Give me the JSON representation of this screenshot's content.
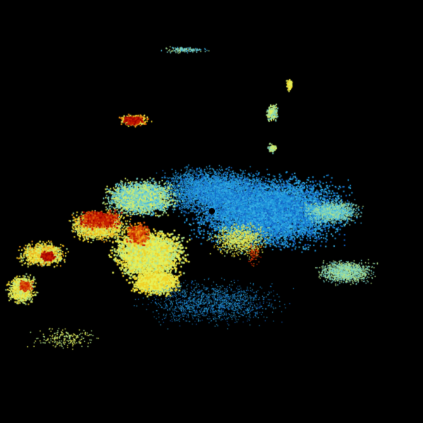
{
  "radar": {
    "background": "#000000",
    "palette": [
      "#0a3a8c",
      "#1464c8",
      "#1e96dc",
      "#3cb4e6",
      "#78d2c8",
      "#b4e68c",
      "#e6f05a",
      "#f0d228",
      "#f0a014",
      "#dc5a0a",
      "#c81e00",
      "#a00000"
    ],
    "site_marker_color": "#000000"
  }
}
